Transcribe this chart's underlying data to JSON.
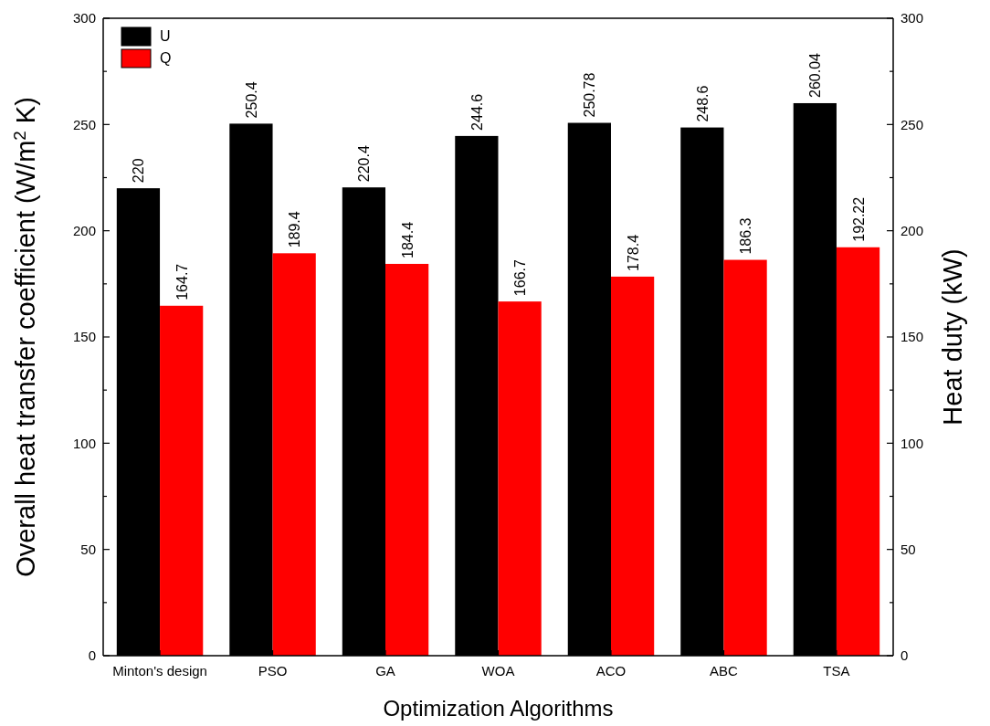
{
  "chart_data": {
    "type": "bar",
    "xlabel": "Optimization Algorithms",
    "ylabel": "Overall heat transfer coefficient (W/m$^{2}$ K)",
    "y2label": "Heat duty (kW)",
    "categories": [
      "Minton's design",
      "PSO",
      "GA",
      "WOA",
      "ACO",
      "ABC",
      "TSA"
    ],
    "series": [
      {
        "name": "U",
        "color": "#000000",
        "values": [
          220,
          250.4,
          220.4,
          244.6,
          250.78,
          248.6,
          260.04
        ]
      },
      {
        "name": "Q",
        "color": "#ff0000",
        "axis": "y2",
        "values": [
          164.7,
          189.4,
          184.4,
          166.7,
          178.4,
          186.3,
          192.22
        ]
      }
    ],
    "ylim": [
      0,
      300
    ],
    "yticks": [
      0,
      {
        "value": 25,
        "label": null
      },
      50,
      {
        "value": 75,
        "label": null
      },
      100,
      {
        "value": 125,
        "label": null
      },
      150,
      {
        "value": 175,
        "label": null
      },
      200,
      {
        "value": 225,
        "label": null
      },
      250,
      {
        "value": 275,
        "label": null
      },
      300
    ],
    "y2lim": [
      0,
      300
    ],
    "y2ticks": [
      0,
      {
        "value": 25,
        "label": null
      },
      50,
      {
        "value": 75,
        "label": null
      },
      100,
      {
        "value": 125,
        "label": null
      },
      150,
      {
        "value": 175,
        "label": null
      },
      200,
      {
        "value": 225,
        "label": null
      },
      250,
      {
        "value": 275,
        "label": null
      },
      300
    ],
    "data_labels": true,
    "legend": "top left",
    "grid": false
  }
}
